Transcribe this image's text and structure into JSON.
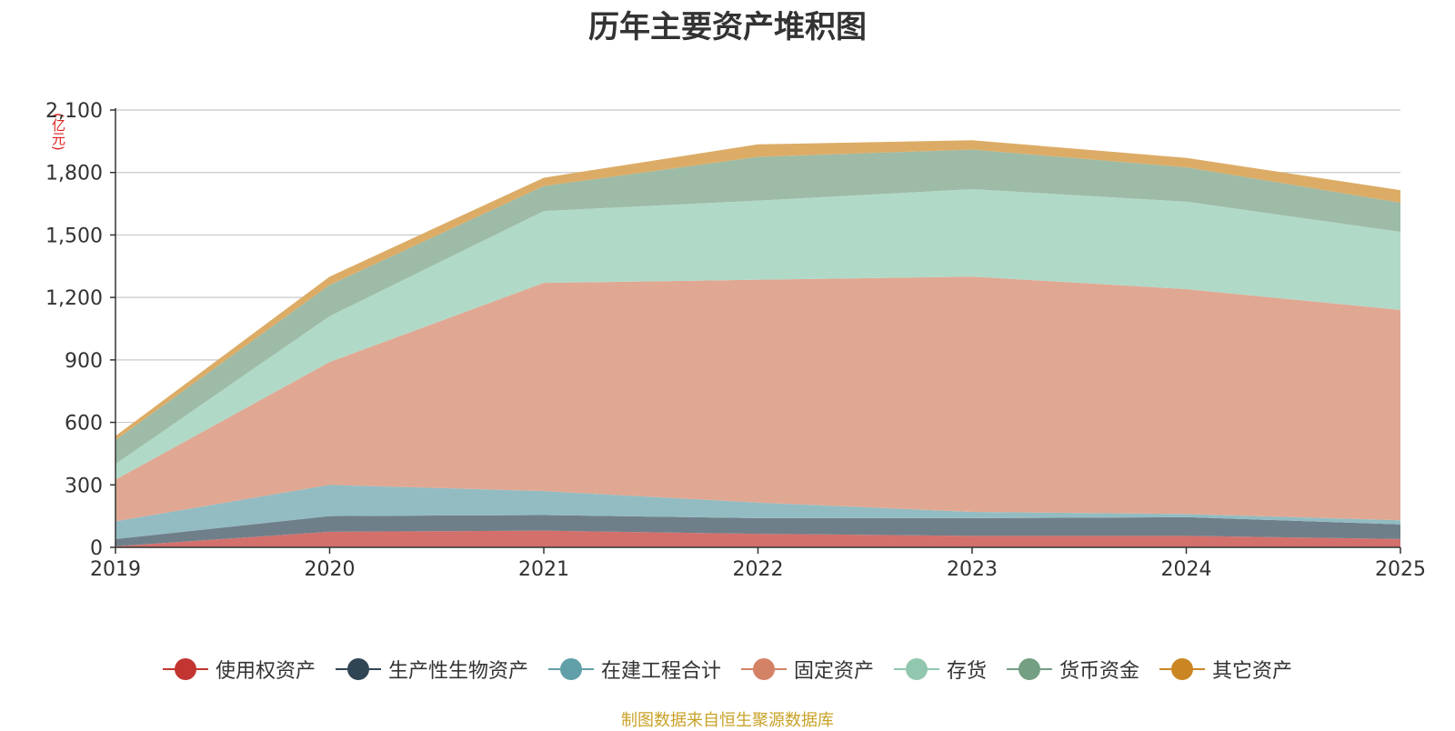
{
  "chart_data": {
    "type": "area",
    "stacked": true,
    "title": "历年主要资产堆积图",
    "unit": "(亿元)",
    "categories": [
      "2019",
      "2020",
      "2021",
      "2022",
      "2023",
      "2024",
      "2025"
    ],
    "ylim": [
      0,
      2100
    ],
    "yticks": [
      0,
      300,
      600,
      900,
      1200,
      1500,
      1800,
      2100
    ],
    "ytick_labels": [
      "0",
      "300",
      "600",
      "900",
      "1,200",
      "1,500",
      "1,800",
      "2,100"
    ],
    "series": [
      {
        "name": "使用权资产",
        "color": "#c23531",
        "fill": "#d4706c",
        "values": [
          5,
          75,
          80,
          65,
          55,
          55,
          40
        ]
      },
      {
        "name": "生产性生物资产",
        "color": "#2f4554",
        "fill": "#6f7f8a",
        "values": [
          35,
          75,
          75,
          75,
          85,
          90,
          70
        ]
      },
      {
        "name": "在建工程合计",
        "color": "#61a0a8",
        "fill": "#92bcc2",
        "values": [
          85,
          150,
          115,
          75,
          30,
          15,
          20
        ]
      },
      {
        "name": "固定资产",
        "color": "#d48265",
        "fill": "#e0a893",
        "values": [
          200,
          590,
          1000,
          1070,
          1130,
          1080,
          1010
        ]
      },
      {
        "name": "存货",
        "color": "#91c7ae",
        "fill": "#b1d9c7",
        "values": [
          75,
          220,
          345,
          380,
          420,
          420,
          375
        ]
      },
      {
        "name": "货币资金",
        "color": "#749f83",
        "fill": "#9dbba7",
        "values": [
          115,
          150,
          120,
          210,
          190,
          165,
          140
        ]
      },
      {
        "name": "其它资产",
        "color": "#ca8622",
        "fill": "#dcac66",
        "values": [
          20,
          40,
          40,
          60,
          45,
          45,
          60
        ]
      }
    ]
  },
  "source": "制图数据来自恒生聚源数据库"
}
